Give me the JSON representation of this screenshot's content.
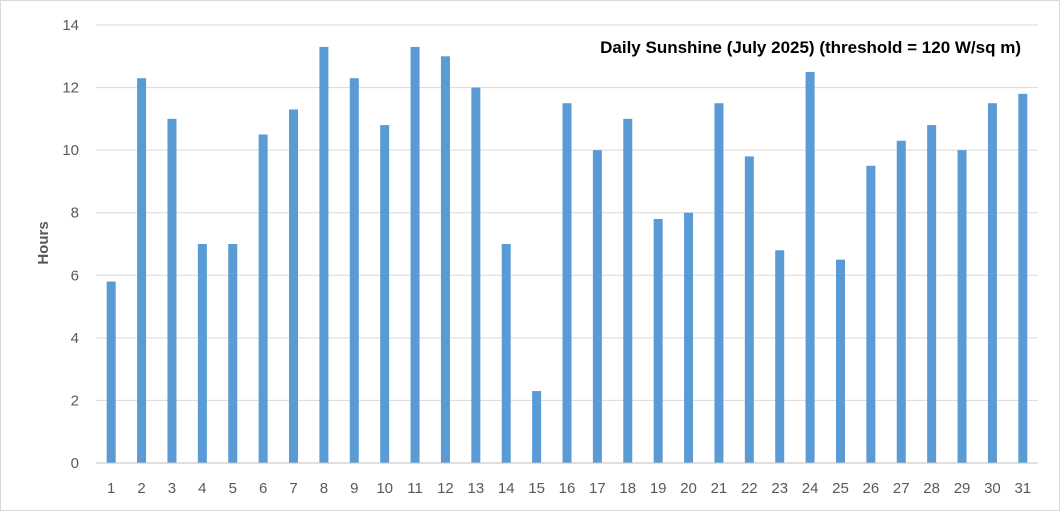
{
  "chart_data": {
    "type": "bar",
    "title": "Daily Sunshine (July 2025) (threshold = 120 W/sq m)",
    "xlabel": "",
    "ylabel": "Hours",
    "ylim": [
      0,
      14
    ],
    "yticks": [
      0,
      2,
      4,
      6,
      8,
      10,
      12,
      14
    ],
    "grid": true,
    "legend": "none",
    "bar_color": "#5b9bd5",
    "categories": [
      "1",
      "2",
      "3",
      "4",
      "5",
      "6",
      "7",
      "8",
      "9",
      "10",
      "11",
      "12",
      "13",
      "14",
      "15",
      "16",
      "17",
      "18",
      "19",
      "20",
      "21",
      "22",
      "23",
      "24",
      "25",
      "26",
      "27",
      "28",
      "29",
      "30",
      "31"
    ],
    "values": [
      5.8,
      12.3,
      11.0,
      7.0,
      7.0,
      10.5,
      11.3,
      13.3,
      12.3,
      10.8,
      13.3,
      13.0,
      12.0,
      7.0,
      2.3,
      11.5,
      10.0,
      11.0,
      7.8,
      8.0,
      11.5,
      9.8,
      6.8,
      12.5,
      6.5,
      9.5,
      10.3,
      10.8,
      10.0,
      11.5,
      11.8
    ]
  }
}
